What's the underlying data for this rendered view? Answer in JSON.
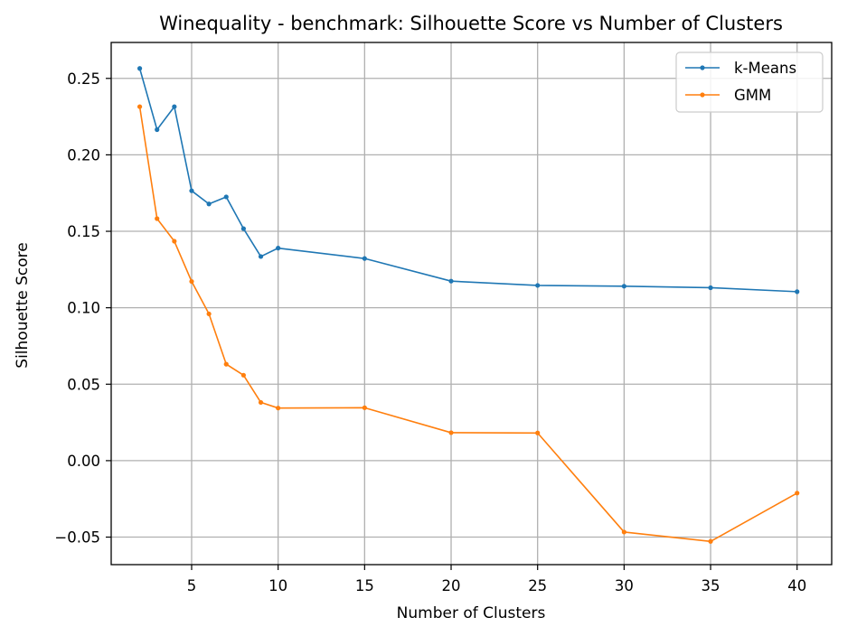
{
  "chart_data": {
    "type": "line",
    "title": "Winequality - benchmark: Silhouette Score vs Number of Clusters",
    "xlabel": "Number of Clusters",
    "ylabel": "Silhouette Score",
    "xlim": [
      0.35,
      42.0
    ],
    "ylim": [
      -0.068,
      0.2735
    ],
    "xticks": [
      5,
      10,
      15,
      20,
      25,
      30,
      35,
      40
    ],
    "xtick_labels": [
      "5",
      "10",
      "15",
      "20",
      "25",
      "30",
      "35",
      "40"
    ],
    "yticks": [
      -0.05,
      0,
      0.05,
      0.1,
      0.15,
      0.2,
      0.25
    ],
    "ytick_labels": [
      "−0.05",
      "0.00",
      "0.05",
      "0.10",
      "0.15",
      "0.20",
      "0.25"
    ],
    "grid": true,
    "legend_position": "top-right",
    "series": [
      {
        "name": "k-Means",
        "color": "#1f77b4",
        "x": [
          2,
          3,
          4,
          5,
          6,
          7,
          8,
          9,
          10,
          15,
          20,
          25,
          30,
          35,
          40
        ],
        "y": [
          0.2565,
          0.2165,
          0.2315,
          0.1765,
          0.1679,
          0.1725,
          0.1517,
          0.1335,
          0.139,
          0.1322,
          0.1174,
          0.1146,
          0.1141,
          0.1131,
          0.1105
        ]
      },
      {
        "name": "GMM",
        "color": "#ff7f0e",
        "x": [
          2,
          3,
          4,
          5,
          6,
          7,
          8,
          9,
          10,
          15,
          20,
          25,
          30,
          35,
          40
        ],
        "y": [
          0.2315,
          0.1583,
          0.1435,
          0.1172,
          0.096,
          0.0631,
          0.0559,
          0.0381,
          0.0344,
          0.0346,
          0.0183,
          0.0181,
          -0.0467,
          -0.0528,
          -0.0212
        ]
      }
    ]
  }
}
